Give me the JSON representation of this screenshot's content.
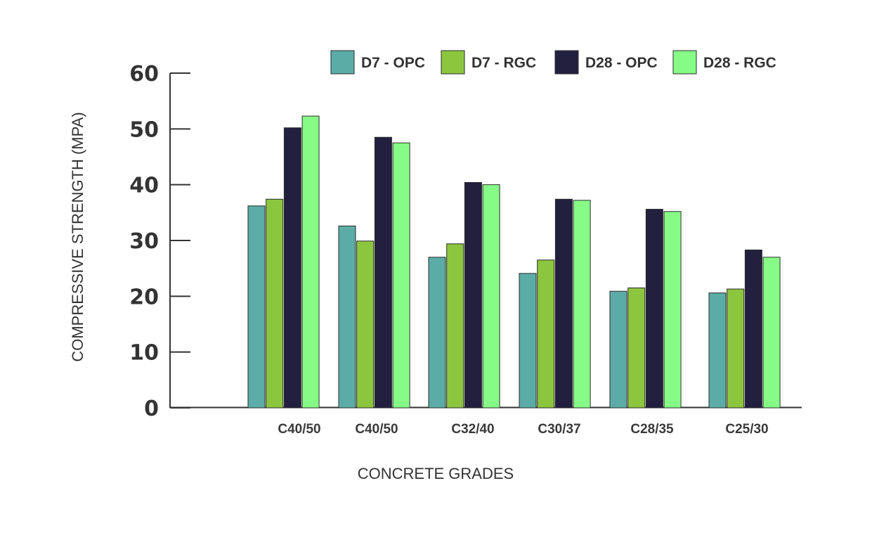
{
  "chart_data": {
    "type": "bar",
    "title": "",
    "xlabel": "CONCRETE GRADES",
    "ylabel": "COMPRESSIVE STRENGTH (MPA)",
    "ylim": [
      0,
      60
    ],
    "yticks": [
      0,
      10,
      20,
      30,
      40,
      50,
      60
    ],
    "grid": false,
    "legend_position": "top-right",
    "categories": [
      "C40/50",
      "C40/50",
      "C32/40",
      "C30/37",
      "C28/35",
      "C25/30"
    ],
    "series": [
      {
        "name": "D7 - OPC",
        "color": "#5BACA7",
        "values": [
          36.2,
          32.6,
          27.0,
          24.1,
          20.9,
          20.6
        ]
      },
      {
        "name": "D7 - RGC",
        "color": "#8CC63F",
        "values": [
          37.4,
          29.9,
          29.4,
          26.5,
          21.5,
          21.3
        ]
      },
      {
        "name": "D28 - OPC",
        "color": "#221F3F",
        "values": [
          50.2,
          48.5,
          40.4,
          37.4,
          35.6,
          28.3
        ]
      },
      {
        "name": "D28 - RGC",
        "color": "#86FC86",
        "values": [
          52.3,
          47.5,
          40.0,
          37.2,
          35.2,
          27.0
        ]
      }
    ]
  }
}
